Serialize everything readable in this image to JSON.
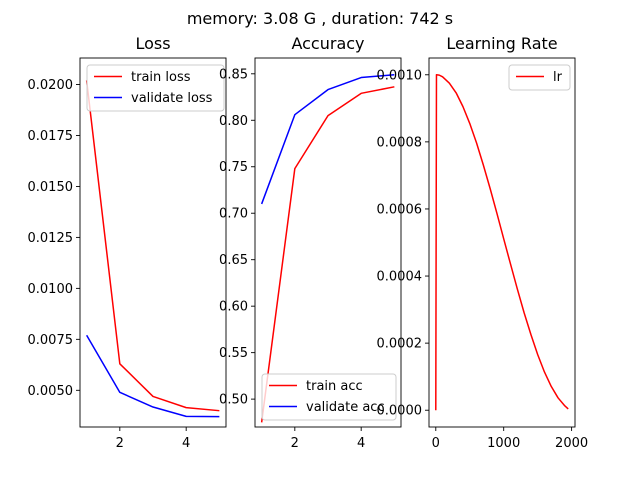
{
  "figure": {
    "suptitle": "memory: 3.08 G , duration: 742 s"
  },
  "chart_data": [
    {
      "type": "line",
      "title": "Loss",
      "xlabel": "",
      "ylabel": "",
      "xlim": [
        0.8,
        5.2
      ],
      "ylim": [
        0.0032,
        0.0213
      ],
      "xticks": [
        2,
        4
      ],
      "xtick_labels": [
        "2",
        "4"
      ],
      "yticks": [
        0.005,
        0.0075,
        0.01,
        0.0125,
        0.015,
        0.0175,
        0.02
      ],
      "ytick_labels": [
        "0.0050",
        "0.0075",
        "0.0100",
        "0.0125",
        "0.0150",
        "0.0175",
        "0.0200"
      ],
      "legend_position": "top-right",
      "series": [
        {
          "name": "train loss",
          "color": "#ff0000",
          "x": [
            1,
            2,
            3,
            4,
            5
          ],
          "y": [
            0.0202,
            0.0063,
            0.0047,
            0.00415,
            0.004
          ]
        },
        {
          "name": "validate loss",
          "color": "#0000ff",
          "x": [
            1,
            2,
            3,
            4,
            5
          ],
          "y": [
            0.0077,
            0.0049,
            0.00418,
            0.00372,
            0.00371
          ]
        }
      ]
    },
    {
      "type": "line",
      "title": "Accuracy",
      "xlabel": "",
      "ylabel": "",
      "xlim": [
        0.8,
        5.2
      ],
      "ylim": [
        0.47,
        0.867
      ],
      "xticks": [
        2,
        4
      ],
      "xtick_labels": [
        "2",
        "4"
      ],
      "yticks": [
        0.5,
        0.55,
        0.6,
        0.65,
        0.7,
        0.75,
        0.8,
        0.85
      ],
      "ytick_labels": [
        "0.50",
        "0.55",
        "0.60",
        "0.65",
        "0.70",
        "0.75",
        "0.80",
        "0.85"
      ],
      "legend_position": "bottom-right",
      "series": [
        {
          "name": "train acc",
          "color": "#ff0000",
          "x": [
            1,
            2,
            3,
            4,
            5
          ],
          "y": [
            0.475,
            0.748,
            0.805,
            0.829,
            0.836
          ]
        },
        {
          "name": "validate acc",
          "color": "#0000ff",
          "x": [
            1,
            2,
            3,
            4,
            5
          ],
          "y": [
            0.71,
            0.806,
            0.833,
            0.846,
            0.849
          ]
        }
      ]
    },
    {
      "type": "line",
      "title": "Learning Rate",
      "xlabel": "",
      "ylabel": "",
      "xlim": [
        -100,
        2050
      ],
      "ylim": [
        -5e-05,
        0.00105
      ],
      "xticks": [
        0,
        1000,
        2000
      ],
      "xtick_labels": [
        "0",
        "1000",
        "2000"
      ],
      "yticks": [
        0,
        0.0002,
        0.0004,
        0.0006,
        0.0008,
        0.001
      ],
      "ytick_labels": [
        "0.0000",
        "0.0002",
        "0.0004",
        "0.0006",
        "0.0008",
        "0.0010"
      ],
      "legend_position": "top-right",
      "series": [
        {
          "name": "lr",
          "color": "#ff0000",
          "x": [
            0,
            10,
            50,
            100,
            200,
            300,
            400,
            500,
            600,
            700,
            800,
            900,
            1000,
            1100,
            1200,
            1300,
            1400,
            1500,
            1600,
            1700,
            1800,
            1900,
            1950
          ],
          "y": [
            0.0,
            0.001,
            0.000999,
            0.000994,
            0.000975,
            0.000946,
            0.000905,
            0.000855,
            0.000797,
            0.000731,
            0.000661,
            0.000587,
            0.000511,
            0.000436,
            0.000362,
            0.000291,
            0.000226,
            0.000166,
            0.000114,
            7.1e-05,
            3.7e-05,
            1.3e-05,
            4e-06
          ]
        }
      ]
    }
  ]
}
